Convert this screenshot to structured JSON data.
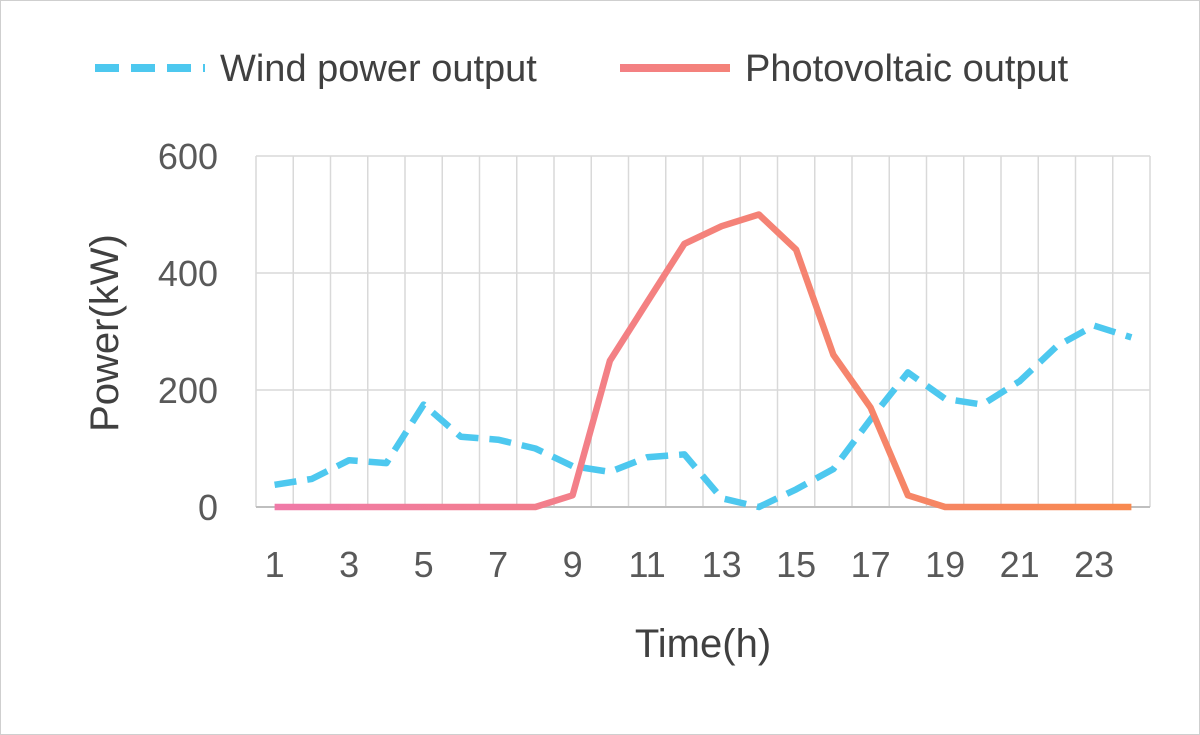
{
  "chart_data": {
    "type": "line",
    "x": [
      1,
      2,
      3,
      4,
      5,
      6,
      7,
      8,
      9,
      10,
      11,
      12,
      13,
      14,
      15,
      16,
      17,
      18,
      19,
      20,
      21,
      22,
      23,
      24
    ],
    "xticks": [
      1,
      3,
      5,
      7,
      9,
      11,
      13,
      15,
      17,
      19,
      21,
      23
    ],
    "xlabel": "Time(h)",
    "ylabel": "Power(kW)",
    "ylim": [
      0,
      600
    ],
    "yticks": [
      0,
      200,
      400,
      600
    ],
    "grid": true,
    "legend": "top",
    "series": [
      {
        "name": "Wind power output",
        "style": "dashed",
        "color": "#4dc8ef",
        "values": [
          38,
          48,
          80,
          75,
          175,
          120,
          115,
          100,
          70,
          60,
          85,
          90,
          15,
          0,
          30,
          65,
          150,
          230,
          185,
          175,
          215,
          275,
          310,
          290
        ]
      },
      {
        "name": "Photovoltaic output",
        "style": "solid",
        "gradient": [
          "#f07aa8",
          "#f8894f"
        ],
        "values": [
          0,
          0,
          0,
          0,
          0,
          0,
          0,
          0,
          20,
          250,
          350,
          450,
          480,
          500,
          440,
          260,
          170,
          20,
          0,
          0,
          0,
          0,
          0,
          0
        ]
      }
    ]
  }
}
